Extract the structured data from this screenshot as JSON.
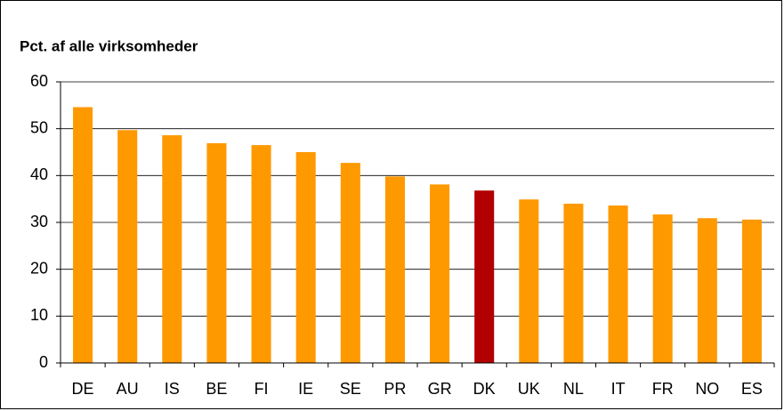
{
  "chart_data": {
    "type": "bar",
    "title": "Pct. af alle virksomheder",
    "categories": [
      "DE",
      "AU",
      "IS",
      "BE",
      "FI",
      "IE",
      "SE",
      "PR",
      "GR",
      "DK",
      "UK",
      "NL",
      "IT",
      "FR",
      "NO",
      "ES"
    ],
    "values": [
      54.6,
      49.7,
      48.6,
      46.9,
      46.5,
      45.0,
      42.7,
      39.8,
      38.1,
      36.8,
      34.9,
      34.0,
      33.6,
      31.7,
      30.9,
      30.6
    ],
    "colors": [
      "#ff9900",
      "#ff9900",
      "#ff9900",
      "#ff9900",
      "#ff9900",
      "#ff9900",
      "#ff9900",
      "#ff9900",
      "#ff9900",
      "#b20000",
      "#ff9900",
      "#ff9900",
      "#ff9900",
      "#ff9900",
      "#ff9900",
      "#ff9900"
    ],
    "ylim": [
      0,
      60
    ],
    "yticks": [
      0,
      10,
      20,
      30,
      40,
      50,
      60
    ],
    "grid": true
  }
}
